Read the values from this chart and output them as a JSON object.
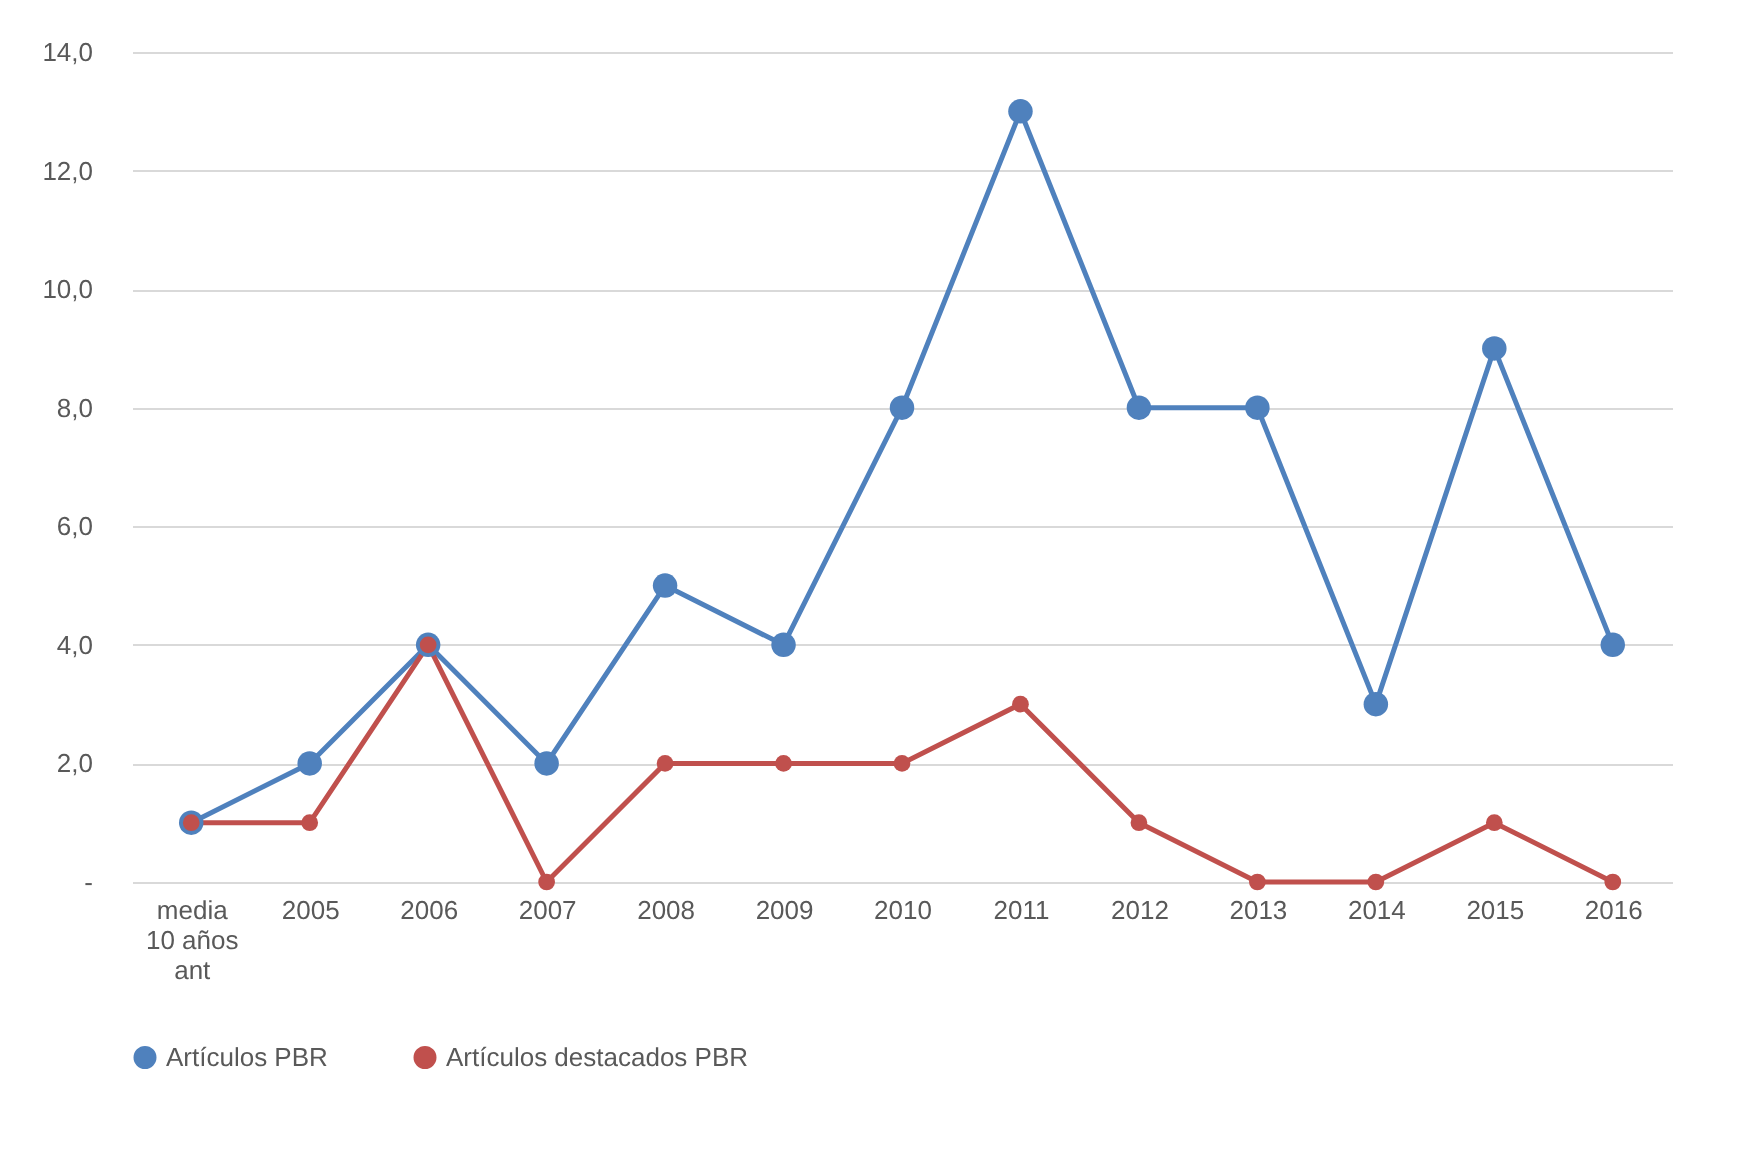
{
  "chart_data": {
    "type": "line",
    "categories": [
      "media\n10 años\nant",
      "2005",
      "2006",
      "2007",
      "2008",
      "2009",
      "2010",
      "2011",
      "2012",
      "2013",
      "2014",
      "2015",
      "2016"
    ],
    "series": [
      {
        "name": "Artículos PBR",
        "color": "#4f81bd",
        "values": [
          1,
          2,
          4,
          2,
          5,
          4,
          8,
          13,
          8,
          8,
          3,
          9,
          4
        ]
      },
      {
        "name": "Artículos destacados PBR",
        "color": "#c0504d",
        "values": [
          1,
          1,
          4,
          0,
          2,
          2,
          2,
          3,
          1,
          0,
          0,
          1,
          0
        ]
      }
    ],
    "ylim": [
      0,
      14
    ],
    "yticks": [
      {
        "value": 0,
        "label": "-"
      },
      {
        "value": 2,
        "label": "2,0"
      },
      {
        "value": 4,
        "label": "4,0"
      },
      {
        "value": 6,
        "label": "6,0"
      },
      {
        "value": 8,
        "label": "8,0"
      },
      {
        "value": 10,
        "label": "10,0"
      },
      {
        "value": 12,
        "label": "12,0"
      },
      {
        "value": 14,
        "label": "14,0"
      }
    ],
    "grid": "y",
    "legend": "bottom",
    "marker": "circle",
    "line_style": "solid"
  }
}
